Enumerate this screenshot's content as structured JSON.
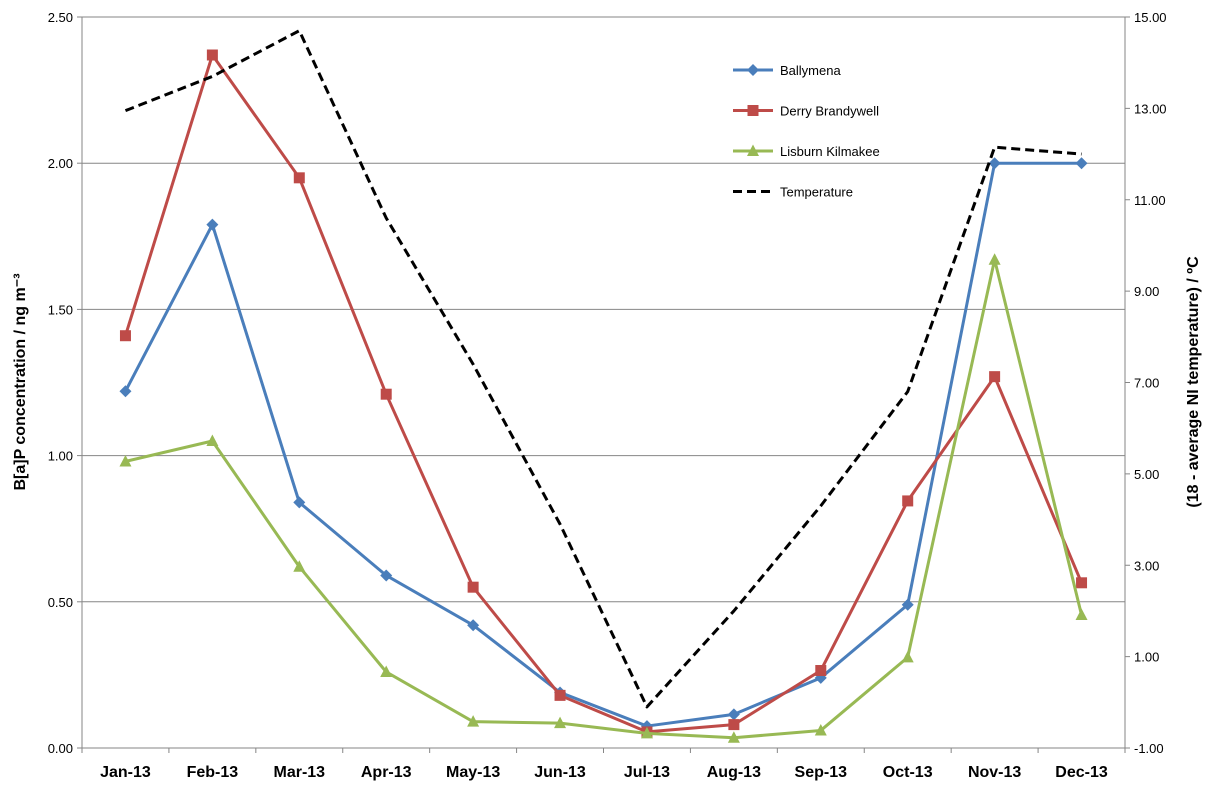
{
  "chart_data": {
    "type": "line",
    "title": "",
    "categories": [
      "Jan-13",
      "Feb-13",
      "Mar-13",
      "Apr-13",
      "May-13",
      "Jun-13",
      "Jul-13",
      "Aug-13",
      "Sep-13",
      "Oct-13",
      "Nov-13",
      "Dec-13"
    ],
    "y_left": {
      "label": "B[a]P concentration / ng m⁻³",
      "ylim": [
        0,
        2.5
      ],
      "ticks": [
        "0.00",
        "0.50",
        "1.00",
        "1.50",
        "2.00",
        "2.50"
      ]
    },
    "y_right": {
      "label": "(18 - average NI temperature) / ºC",
      "ylim": [
        -1,
        15
      ],
      "ticks": [
        "-1.00",
        "1.00",
        "3.00",
        "5.00",
        "7.00",
        "9.00",
        "11.00",
        "13.00",
        "15.00"
      ]
    },
    "series": [
      {
        "name": "Ballymena",
        "axis": "left",
        "color": "#4a7ebb",
        "marker": "diamond",
        "values": [
          1.22,
          1.79,
          0.84,
          0.59,
          0.42,
          0.19,
          0.075,
          0.115,
          0.24,
          0.49,
          2.0,
          2.0
        ]
      },
      {
        "name": "Derry Brandywell",
        "axis": "left",
        "color": "#be4b48",
        "marker": "square",
        "values": [
          1.41,
          2.37,
          1.95,
          1.21,
          0.55,
          0.18,
          0.055,
          0.08,
          0.265,
          0.845,
          1.27,
          0.565
        ]
      },
      {
        "name": "Lisburn Kilmakee",
        "axis": "left",
        "color": "#98b954",
        "marker": "triangle",
        "values": [
          0.98,
          1.05,
          0.62,
          0.26,
          0.09,
          0.085,
          0.05,
          0.035,
          0.06,
          0.31,
          1.67,
          0.455
        ]
      },
      {
        "name": "Temperature",
        "axis": "right",
        "color": "#000000",
        "marker": "none",
        "dashed": true,
        "values": [
          12.95,
          13.7,
          14.7,
          10.6,
          7.4,
          3.9,
          -0.1,
          2.0,
          4.3,
          6.8,
          12.15,
          12.0
        ]
      }
    ],
    "grid": true,
    "legend": "top-right"
  }
}
